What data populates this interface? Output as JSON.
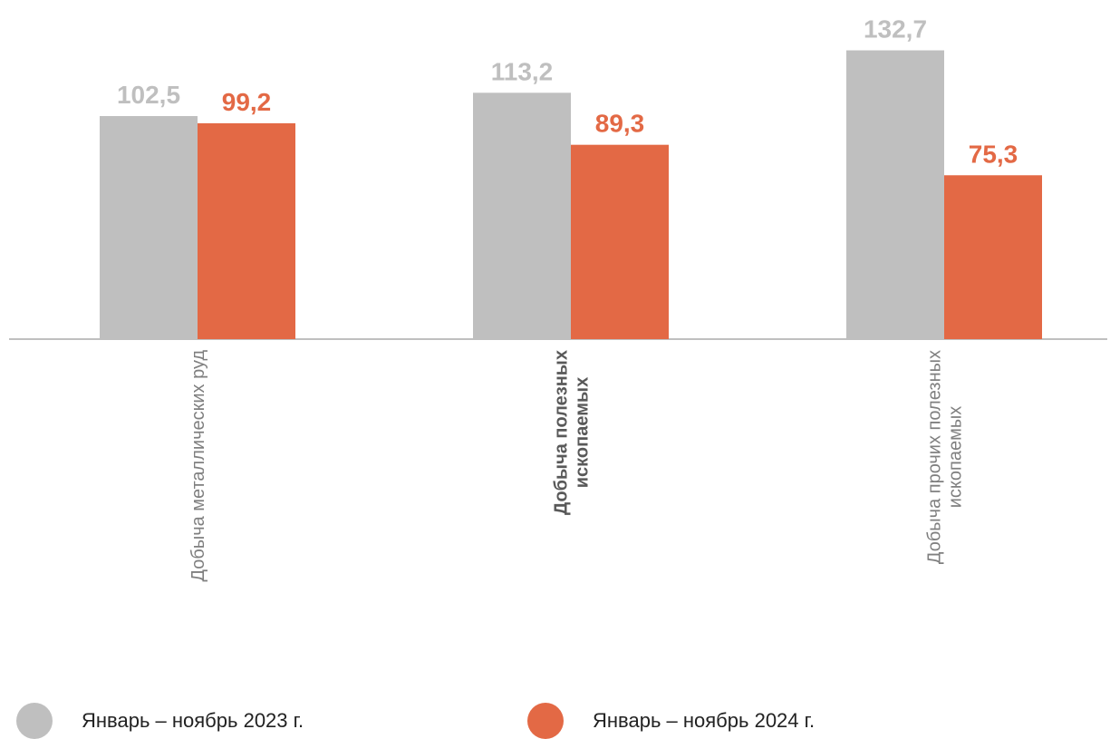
{
  "chart_data": {
    "type": "bar",
    "title": "",
    "xlabel": "",
    "ylabel": "",
    "ylim": [
      0,
      140
    ],
    "grid": false,
    "legend_position": "bottom",
    "categories": [
      "Добыча металлических руд",
      "Добыча полезных ископаемых",
      "Добыча прочих полезных ископаемых"
    ],
    "category_label_lines": [
      [
        "Добыча металлических руд"
      ],
      [
        "Добыча полезных",
        "ископаемых"
      ],
      [
        "Добыча прочих полезных",
        "ископаемых"
      ]
    ],
    "category_label_bold": [
      false,
      true,
      false
    ],
    "series": [
      {
        "name": "Январь – ноябрь 2023 г.",
        "values": [
          102.5,
          113.2,
          132.7
        ],
        "labels": [
          "102,5",
          "113,2",
          "132,7"
        ],
        "color": "#bfbfbf"
      },
      {
        "name": "Январь – ноябрь 2024 г.",
        "values": [
          99.2,
          89.3,
          75.3
        ],
        "labels": [
          "99,2",
          "89,3",
          "75,3"
        ],
        "color": "#e36945"
      }
    ],
    "axis_color": "#bfbfbf",
    "category_label_color": "#7f7f7f",
    "category_label_bold_color": "#595959"
  }
}
